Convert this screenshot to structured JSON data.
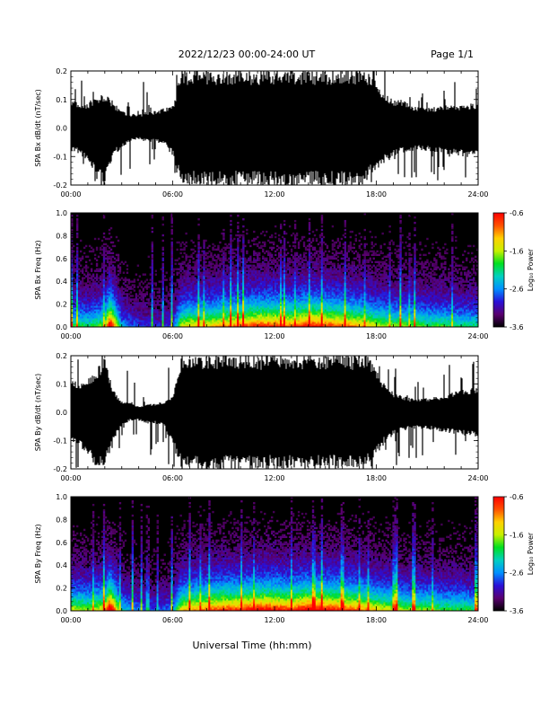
{
  "header": {
    "title": "2022/12/23  00:00-24:00 UT",
    "page": "Page 1/1"
  },
  "footer": {
    "xlabel": "Universal Time (hh:mm)"
  },
  "colors": {
    "trace": "#000000",
    "background": "#ffffff",
    "colormap": [
      "#000000",
      "#5a0070",
      "#2a10d8",
      "#0090ff",
      "#00d0c0",
      "#00e020",
      "#c8f000",
      "#ffd000",
      "#ff5000",
      "#ff0000"
    ]
  },
  "chart_data": [
    {
      "type": "line",
      "ylabel": "SPA Bx dB/dt (nT/sec)",
      "ylim": [
        -0.2,
        0.2
      ],
      "yticks": [
        "0.2",
        "0.1",
        "0.0",
        "-0.1",
        "-0.2"
      ],
      "xticks": [
        "00:00",
        "06:00",
        "12:00",
        "18:00",
        "24:00"
      ],
      "xlim_hours": [
        0,
        24
      ],
      "envelope_hours": [
        0,
        0.5,
        1,
        1.5,
        2,
        2.5,
        3,
        3.5,
        4,
        4.5,
        5,
        5.5,
        6,
        6.5,
        7,
        7.5,
        8,
        9,
        10,
        11,
        12,
        13,
        14,
        15,
        16,
        17,
        17.5,
        18,
        18.5,
        19,
        19.5,
        20,
        21,
        22,
        23,
        24
      ],
      "envelope_upper": [
        0.1,
        0.09,
        0.09,
        0.11,
        0.12,
        0.09,
        0.06,
        0.05,
        0.05,
        0.06,
        0.06,
        0.07,
        0.08,
        0.2,
        0.2,
        0.2,
        0.2,
        0.2,
        0.2,
        0.2,
        0.2,
        0.2,
        0.2,
        0.2,
        0.2,
        0.2,
        0.2,
        0.16,
        0.12,
        0.1,
        0.1,
        0.08,
        0.07,
        0.08,
        0.08,
        0.09
      ],
      "envelope_lower": [
        -0.08,
        -0.09,
        -0.12,
        -0.16,
        -0.2,
        -0.1,
        -0.07,
        -0.05,
        -0.04,
        -0.05,
        -0.05,
        -0.06,
        -0.1,
        -0.2,
        -0.2,
        -0.2,
        -0.2,
        -0.2,
        -0.2,
        -0.2,
        -0.2,
        -0.2,
        -0.2,
        -0.2,
        -0.2,
        -0.2,
        -0.18,
        -0.15,
        -0.12,
        -0.1,
        -0.09,
        -0.08,
        -0.08,
        -0.09,
        -0.1,
        -0.1
      ]
    },
    {
      "type": "heatmap",
      "ylabel": "SPA Bx Freq (Hz)",
      "ylim": [
        0,
        1.0
      ],
      "yticks": [
        "1.0",
        "0.8",
        "0.6",
        "0.4",
        "0.2",
        "0.0"
      ],
      "xticks": [
        "00:00",
        "06:00",
        "12:00",
        "18:00",
        "24:00"
      ],
      "xlim_hours": [
        0,
        24
      ],
      "colorbar": {
        "label": "Log₁₀ Power",
        "ticks": [
          "-0.6",
          "-1.6",
          "-2.6",
          "-3.6"
        ],
        "range": [
          -3.6,
          -0.6
        ]
      },
      "activity_hours": [
        0,
        1,
        2,
        2.3,
        3,
        4,
        5,
        6,
        6.5,
        7,
        8,
        9,
        10,
        11,
        12,
        13,
        14,
        15,
        16,
        17,
        18,
        19,
        20,
        21,
        22,
        23,
        24
      ],
      "activity_level": [
        0.45,
        0.4,
        0.5,
        0.9,
        0.3,
        0.2,
        0.18,
        0.2,
        0.55,
        0.6,
        0.6,
        0.65,
        0.7,
        0.75,
        0.75,
        0.7,
        0.8,
        0.75,
        0.7,
        0.65,
        0.55,
        0.5,
        0.5,
        0.45,
        0.45,
        0.4,
        0.4
      ]
    },
    {
      "type": "line",
      "ylabel": "SPA By dB/dt (nT/sec)",
      "ylim": [
        -0.2,
        0.2
      ],
      "yticks": [
        "0.2",
        "0.1",
        "0.0",
        "-0.1",
        "-0.2"
      ],
      "xticks": [
        "00:00",
        "06:00",
        "12:00",
        "18:00",
        "24:00"
      ],
      "xlim_hours": [
        0,
        24
      ],
      "envelope_hours": [
        0,
        0.5,
        1,
        1.5,
        2,
        2.5,
        3,
        3.5,
        4,
        4.5,
        5,
        5.5,
        6,
        6.5,
        7,
        7.5,
        8,
        9,
        10,
        11,
        12,
        13,
        14,
        15,
        16,
        17,
        17.5,
        18,
        18.5,
        19,
        19.5,
        20,
        21,
        22,
        23,
        24
      ],
      "envelope_upper": [
        0.12,
        0.1,
        0.12,
        0.15,
        0.2,
        0.08,
        0.04,
        0.04,
        0.02,
        0.03,
        0.03,
        0.04,
        0.06,
        0.2,
        0.2,
        0.2,
        0.2,
        0.2,
        0.2,
        0.2,
        0.2,
        0.2,
        0.2,
        0.2,
        0.2,
        0.2,
        0.2,
        0.15,
        0.1,
        0.07,
        0.06,
        0.05,
        0.05,
        0.06,
        0.08,
        0.09
      ],
      "envelope_lower": [
        -0.1,
        -0.12,
        -0.16,
        -0.2,
        -0.2,
        -0.1,
        -0.05,
        -0.03,
        -0.03,
        -0.04,
        -0.04,
        -0.05,
        -0.12,
        -0.2,
        -0.2,
        -0.2,
        -0.2,
        -0.2,
        -0.2,
        -0.2,
        -0.2,
        -0.2,
        -0.2,
        -0.2,
        -0.2,
        -0.2,
        -0.19,
        -0.15,
        -0.11,
        -0.08,
        -0.07,
        -0.06,
        -0.06,
        -0.07,
        -0.08,
        -0.09
      ]
    },
    {
      "type": "heatmap",
      "ylabel": "SPA By Freq (Hz)",
      "ylim": [
        0,
        1.0
      ],
      "yticks": [
        "1.0",
        "0.8",
        "0.6",
        "0.4",
        "0.2",
        "0.0"
      ],
      "xticks": [
        "00:00",
        "06:00",
        "12:00",
        "18:00",
        "24:00"
      ],
      "xlim_hours": [
        0,
        24
      ],
      "colorbar": {
        "label": "Log₁₀ Power",
        "ticks": [
          "-0.6",
          "-1.6",
          "-2.6",
          "-3.6"
        ],
        "range": [
          -3.6,
          -0.6
        ]
      },
      "activity_hours": [
        0,
        1,
        2,
        2.3,
        3,
        4,
        5,
        6,
        6.5,
        7,
        8,
        9,
        10,
        11,
        12,
        13,
        14,
        15,
        16,
        17,
        18,
        19,
        20,
        21,
        22,
        23,
        24
      ],
      "activity_level": [
        0.55,
        0.5,
        0.6,
        0.95,
        0.35,
        0.25,
        0.22,
        0.25,
        0.6,
        0.65,
        0.7,
        0.75,
        0.75,
        0.8,
        0.8,
        0.75,
        0.85,
        0.8,
        0.75,
        0.7,
        0.6,
        0.55,
        0.5,
        0.5,
        0.45,
        0.45,
        0.4
      ]
    }
  ]
}
